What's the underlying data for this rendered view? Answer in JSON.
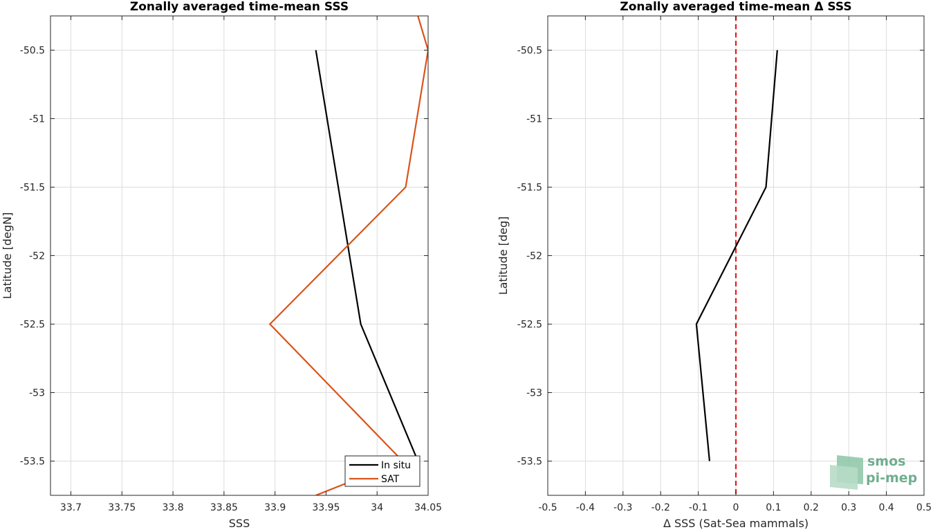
{
  "chart_data": [
    {
      "type": "line",
      "title": "Zonally averaged time-mean SSS",
      "xlabel": "SSS",
      "ylabel": "Latitude [degN]",
      "xlim": [
        33.68,
        34.05
      ],
      "ylim": [
        -53.75,
        -50.25
      ],
      "x_ticks": [
        33.7,
        33.75,
        33.8,
        33.85,
        33.9,
        33.95,
        34.0,
        34.05
      ],
      "x_tick_labels": [
        "33.7",
        "33.75",
        "33.8",
        "33.85",
        "33.9",
        "33.95",
        "34",
        "34.05"
      ],
      "y_ticks": [
        -50.5,
        -51,
        -51.5,
        -52,
        -52.5,
        -53,
        -53.5
      ],
      "y_tick_labels": [
        "-50.5",
        "-51",
        "-51.5",
        "-52",
        "-52.5",
        "-53",
        "-53.5"
      ],
      "grid": true,
      "legend_position": "bottom-right",
      "series": [
        {
          "name": "In situ",
          "color": "#000000",
          "points": [
            [
              33.94,
              -50.5
            ],
            [
              33.962,
              -51.5
            ],
            [
              33.984,
              -52.5
            ],
            [
              34.04,
              -53.5
            ]
          ]
        },
        {
          "name": "SAT",
          "color": "#d95319",
          "points": [
            [
              34.04,
              -50.25
            ],
            [
              34.05,
              -50.5
            ],
            [
              34.028,
              -51.5
            ],
            [
              33.895,
              -52.5
            ],
            [
              34.025,
              -53.5
            ],
            [
              33.94,
              -53.75
            ]
          ]
        }
      ]
    },
    {
      "type": "line",
      "title": "Zonally averaged time-mean Δ SSS",
      "xlabel": "Δ SSS (Sat-Sea mammals)",
      "ylabel": "Latitude [deg]",
      "xlim": [
        -0.5,
        0.5
      ],
      "ylim": [
        -53.75,
        -50.25
      ],
      "x_ticks": [
        -0.5,
        -0.4,
        -0.3,
        -0.2,
        -0.1,
        0,
        0.1,
        0.2,
        0.3,
        0.4,
        0.5
      ],
      "x_tick_labels": [
        "-0.5",
        "-0.4",
        "-0.3",
        "-0.2",
        "-0.1",
        "0",
        "0.1",
        "0.2",
        "0.3",
        "0.4",
        "0.5"
      ],
      "y_ticks": [
        -50.5,
        -51,
        -51.5,
        -52,
        -52.5,
        -53,
        -53.5
      ],
      "y_tick_labels": [
        "-50.5",
        "-51",
        "-51.5",
        "-52",
        "-52.5",
        "-53",
        "-53.5"
      ],
      "grid": true,
      "reference_line": {
        "x": 0,
        "color": "#e41a1c",
        "style": "dashed"
      },
      "series": [
        {
          "color": "#000000",
          "points": [
            [
              0.11,
              -50.5
            ],
            [
              0.08,
              -51.5
            ],
            [
              -0.105,
              -52.5
            ],
            [
              -0.07,
              -53.5
            ]
          ]
        }
      ]
    }
  ],
  "logo": {
    "line1": "smos",
    "line2": "pi-mep",
    "color": "#6fae8e"
  }
}
